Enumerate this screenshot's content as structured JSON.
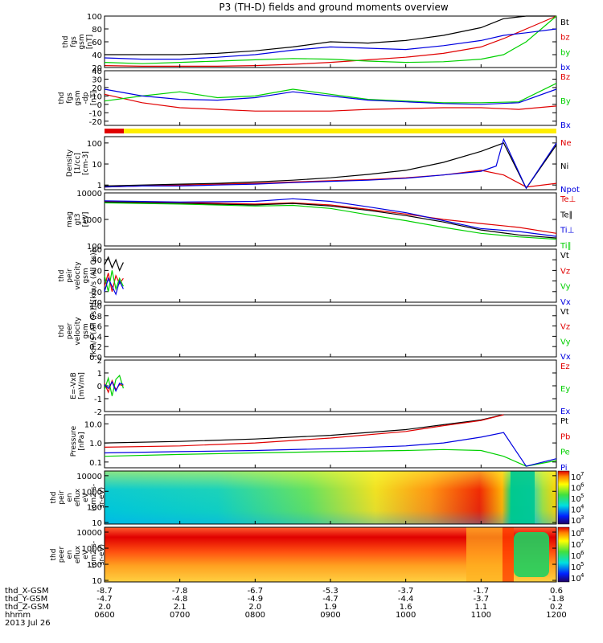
{
  "title": "P3 (TH-D) fields and ground moments overview",
  "date": "2013 Jul 26",
  "colors": {
    "black": "#000000",
    "red": "#e00000",
    "green": "#00d000",
    "blue": "#0000e0",
    "yellow": "#ffee00"
  },
  "chart_data": [
    {
      "id": "fgs_gsm",
      "type": "line",
      "ylabel": [
        "thd",
        "fgs",
        "gsm",
        "[nT]"
      ],
      "yticks": [
        "20",
        "40",
        "60",
        "80",
        "100"
      ],
      "ylim": [
        20,
        100
      ],
      "legend": [
        {
          "label": "Bt",
          "color": "black"
        },
        {
          "label": "bz",
          "color": "red"
        },
        {
          "label": "by",
          "color": "green"
        },
        {
          "label": "bx",
          "color": "blue"
        }
      ],
      "series": [
        {
          "name": "Bt",
          "color": "black",
          "x": [
            6.0,
            6.5,
            7.0,
            7.5,
            8.0,
            8.5,
            9.0,
            9.5,
            10.0,
            10.5,
            11.0,
            11.3,
            11.6,
            12.0
          ],
          "y": [
            40,
            40,
            40,
            42,
            46,
            52,
            60,
            58,
            62,
            70,
            82,
            96,
            100,
            100
          ]
        },
        {
          "name": "bz",
          "color": "red",
          "x": [
            6.0,
            6.5,
            7.0,
            7.5,
            8.0,
            8.5,
            9.0,
            9.5,
            10.0,
            10.5,
            11.0,
            11.3,
            11.6,
            12.0
          ],
          "y": [
            23,
            22,
            22,
            22,
            23,
            25,
            28,
            32,
            36,
            42,
            52,
            65,
            80,
            100
          ]
        },
        {
          "name": "by",
          "color": "green",
          "x": [
            6.0,
            6.5,
            7.0,
            7.5,
            8.0,
            8.5,
            9.0,
            9.5,
            10.0,
            10.5,
            11.0,
            11.3,
            11.6,
            12.0
          ],
          "y": [
            28,
            26,
            28,
            30,
            32,
            34,
            33,
            30,
            28,
            29,
            33,
            40,
            60,
            100
          ]
        },
        {
          "name": "bx",
          "color": "blue",
          "x": [
            6.0,
            6.5,
            7.0,
            7.5,
            8.0,
            8.5,
            9.0,
            9.5,
            10.0,
            10.5,
            11.0,
            11.3,
            11.6,
            12.0
          ],
          "y": [
            35,
            33,
            33,
            36,
            40,
            47,
            52,
            50,
            48,
            54,
            62,
            70,
            74,
            80
          ]
        }
      ]
    },
    {
      "id": "fgs_gsm_dp",
      "type": "line",
      "ylabel": [
        "thd",
        "fgs",
        "gsm",
        "-dp",
        "[nT]"
      ],
      "yticks": [
        "-20",
        "-10",
        "0",
        "10",
        "20",
        "30",
        "40"
      ],
      "ylim": [
        -25,
        40
      ],
      "legend": [
        {
          "label": "Bz",
          "color": "red"
        },
        {
          "label": "By",
          "color": "green"
        },
        {
          "label": "Bx",
          "color": "blue"
        }
      ],
      "series": [
        {
          "name": "Bz",
          "color": "red",
          "x": [
            6.0,
            6.5,
            7.0,
            7.5,
            8.0,
            8.5,
            9.0,
            9.5,
            10.0,
            10.5,
            11.0,
            11.5,
            12.0
          ],
          "y": [
            12,
            2,
            -4,
            -6,
            -8,
            -8,
            -8,
            -6,
            -5,
            -4,
            -4,
            -6,
            -2
          ]
        },
        {
          "name": "By",
          "color": "green",
          "x": [
            6.0,
            6.5,
            7.0,
            7.5,
            8.0,
            8.5,
            9.0,
            9.5,
            10.0,
            10.5,
            11.0,
            11.5,
            12.0
          ],
          "y": [
            4,
            10,
            15,
            8,
            10,
            18,
            12,
            6,
            4,
            2,
            2,
            3,
            25
          ]
        },
        {
          "name": "Bx",
          "color": "blue",
          "x": [
            6.0,
            6.5,
            7.0,
            7.5,
            8.0,
            8.5,
            9.0,
            9.5,
            10.0,
            10.5,
            11.0,
            11.5,
            12.0
          ],
          "y": [
            18,
            10,
            6,
            5,
            8,
            15,
            10,
            5,
            3,
            1,
            0,
            2,
            18
          ]
        }
      ]
    },
    {
      "id": "density",
      "type": "line",
      "ylabel": [
        "Density",
        "[1/cc]",
        "[cm-3]"
      ],
      "log": true,
      "yticks": [
        "1",
        "10",
        "100"
      ],
      "ylim": [
        0.6,
        200
      ],
      "legend": [
        {
          "label": "Ne",
          "color": "red"
        },
        {
          "label": "Ni",
          "color": "black"
        },
        {
          "label": "Npot",
          "color": "blue"
        }
      ],
      "series": [
        {
          "name": "Ne",
          "color": "red",
          "x": [
            6.0,
            6.5,
            7.0,
            7.5,
            8.0,
            8.5,
            9.0,
            9.5,
            10.0,
            10.5,
            11.0,
            11.3,
            11.6,
            12.0
          ],
          "y": [
            0.8,
            0.9,
            1.0,
            1.1,
            1.2,
            1.4,
            1.6,
            1.8,
            2.2,
            3.0,
            5.0,
            3.0,
            0.8,
            1.2
          ]
        },
        {
          "name": "Ni",
          "color": "black",
          "x": [
            6.0,
            6.5,
            7.0,
            7.5,
            8.0,
            8.5,
            9.0,
            9.5,
            10.0,
            10.5,
            11.0,
            11.3,
            11.6,
            12.0
          ],
          "y": [
            0.9,
            1.0,
            1.1,
            1.2,
            1.4,
            1.7,
            2.2,
            3.2,
            5.0,
            12,
            40,
            100,
            0.7,
            80
          ]
        },
        {
          "name": "Npot",
          "color": "blue",
          "x": [
            6.0,
            6.5,
            7.0,
            7.5,
            8.0,
            8.5,
            9.0,
            9.5,
            10.0,
            10.5,
            11.0,
            11.2,
            11.3,
            11.6,
            12.0
          ],
          "y": [
            0.8,
            0.9,
            0.9,
            1.0,
            1.1,
            1.3,
            1.5,
            1.7,
            2.1,
            3.0,
            4.5,
            8,
            150,
            0.7,
            100
          ]
        }
      ]
    },
    {
      "id": "temperature",
      "type": "line",
      "ylabel": [
        "mag",
        "gt3",
        "[eV]"
      ],
      "log": true,
      "yticks": [
        "100",
        "1000",
        "10000"
      ],
      "ylim": [
        100,
        10000
      ],
      "legend": [
        {
          "label": "Te⊥",
          "color": "red"
        },
        {
          "label": "Te∥",
          "color": "black"
        },
        {
          "label": "Ti⊥",
          "color": "blue"
        },
        {
          "label": "Ti∥",
          "color": "green"
        }
      ],
      "series": [
        {
          "name": "Te⊥",
          "color": "red",
          "x": [
            6.0,
            7.0,
            8.0,
            8.5,
            9.0,
            9.5,
            10.0,
            10.5,
            11.0,
            11.5,
            12.0
          ],
          "y": [
            4800,
            4400,
            3800,
            4200,
            3500,
            2400,
            1600,
            1000,
            700,
            500,
            300
          ]
        },
        {
          "name": "Te∥",
          "color": "black",
          "x": [
            6.0,
            7.0,
            8.0,
            8.5,
            9.0,
            9.5,
            10.0,
            10.5,
            11.0,
            11.5,
            12.0
          ],
          "y": [
            4500,
            4000,
            3500,
            4000,
            3200,
            2200,
            1400,
            800,
            400,
            260,
            200
          ]
        },
        {
          "name": "Ti⊥",
          "color": "blue",
          "x": [
            6.0,
            7.0,
            8.0,
            8.5,
            9.0,
            9.5,
            10.0,
            10.5,
            11.0,
            11.5,
            12.0
          ],
          "y": [
            5000,
            4500,
            4800,
            6000,
            4800,
            3000,
            1800,
            900,
            450,
            350,
            230
          ]
        },
        {
          "name": "Ti∥",
          "color": "green",
          "x": [
            6.0,
            7.0,
            8.0,
            8.5,
            9.0,
            9.5,
            10.0,
            10.5,
            11.0,
            11.5,
            12.0
          ],
          "y": [
            4200,
            3800,
            3200,
            3400,
            2600,
            1500,
            900,
            500,
            300,
            220,
            180
          ]
        }
      ]
    },
    {
      "id": "peir_velocity",
      "type": "line",
      "ylabel": [
        "thd",
        "peir",
        "velocity",
        "gsm",
        "[km/s (All Qs)]"
      ],
      "yticks": [
        "-40",
        "-20",
        "0",
        "20",
        "40",
        "60"
      ],
      "ylim": [
        -40,
        60
      ],
      "legend": [
        {
          "label": "Vt",
          "color": "black"
        },
        {
          "label": "Vz",
          "color": "red"
        },
        {
          "label": "Vy",
          "color": "green"
        },
        {
          "label": "Vx",
          "color": "blue"
        }
      ],
      "series": [
        {
          "name": "Vt",
          "color": "black",
          "x": [
            6.0,
            6.05,
            6.1,
            6.15,
            6.2,
            6.25
          ],
          "y": [
            30,
            45,
            25,
            40,
            20,
            35
          ]
        },
        {
          "name": "Vz",
          "color": "red",
          "x": [
            6.0,
            6.05,
            6.1,
            6.15,
            6.2,
            6.25
          ],
          "y": [
            -10,
            15,
            -20,
            10,
            -5,
            5
          ]
        },
        {
          "name": "Vy",
          "color": "green",
          "x": [
            6.0,
            6.05,
            6.1,
            6.15,
            6.2,
            6.25
          ],
          "y": [
            10,
            -20,
            20,
            -15,
            5,
            -10
          ]
        },
        {
          "name": "Vx",
          "color": "blue",
          "x": [
            6.0,
            6.05,
            6.1,
            6.15,
            6.2,
            6.25
          ],
          "y": [
            -20,
            5,
            -10,
            -25,
            0,
            -15
          ]
        }
      ]
    },
    {
      "id": "peer_velocity",
      "type": "line",
      "ylabel": [
        "thd",
        "peer",
        "velocity",
        "gsm",
        "[km/s (All Qs)]"
      ],
      "yticks": [
        "0.0",
        "0.2",
        "0.4",
        "0.6",
        "0.8",
        "1.0"
      ],
      "ylim": [
        0,
        1
      ],
      "legend": [
        {
          "label": "Vt",
          "color": "black"
        },
        {
          "label": "Vz",
          "color": "red"
        },
        {
          "label": "Vy",
          "color": "green"
        },
        {
          "label": "Vx",
          "color": "blue"
        }
      ],
      "series": []
    },
    {
      "id": "efield",
      "type": "line",
      "ylabel": [
        "E=-VxB",
        "[mV/m]"
      ],
      "yticks": [
        "-2",
        "-1",
        "0",
        "1",
        "2"
      ],
      "ylim": [
        -2,
        2
      ],
      "legend": [
        {
          "label": "Ez",
          "color": "red"
        },
        {
          "label": "Ey",
          "color": "green"
        },
        {
          "label": "Ex",
          "color": "blue"
        }
      ],
      "series": [
        {
          "name": "Ez",
          "color": "red",
          "x": [
            6.0,
            6.05,
            6.1,
            6.15,
            6.2,
            6.25
          ],
          "y": [
            0.2,
            -0.5,
            0.4,
            -0.3,
            0.1,
            0.0
          ]
        },
        {
          "name": "Ey",
          "color": "green",
          "x": [
            6.0,
            6.05,
            6.1,
            6.15,
            6.2,
            6.25
          ],
          "y": [
            -0.3,
            0.6,
            -0.8,
            0.5,
            0.8,
            -0.2
          ]
        },
        {
          "name": "Ex",
          "color": "blue",
          "x": [
            6.0,
            6.05,
            6.1,
            6.15,
            6.2,
            6.25
          ],
          "y": [
            0.1,
            -0.2,
            0.3,
            -0.4,
            0.2,
            0.1
          ]
        }
      ]
    },
    {
      "id": "pressure",
      "type": "line",
      "ylabel": [
        "Pressure",
        "[nPa]"
      ],
      "log": true,
      "yticks": [
        "0.1",
        "1.0",
        "10.0"
      ],
      "ylim": [
        0.05,
        30
      ],
      "legend": [
        {
          "label": "Pt",
          "color": "black"
        },
        {
          "label": "Pb",
          "color": "red"
        },
        {
          "label": "Pe",
          "color": "green"
        },
        {
          "label": "Pi",
          "color": "blue"
        }
      ],
      "series": [
        {
          "name": "Pt",
          "color": "black",
          "x": [
            6.0,
            7.0,
            8.0,
            9.0,
            10.0,
            10.5,
            11.0,
            11.3
          ],
          "y": [
            1.0,
            1.2,
            1.6,
            2.5,
            5.0,
            9,
            16,
            30
          ]
        },
        {
          "name": "Pb",
          "color": "red",
          "x": [
            6.0,
            7.0,
            8.0,
            9.0,
            10.0,
            10.5,
            11.0,
            11.3
          ],
          "y": [
            0.6,
            0.7,
            1.0,
            1.8,
            4.0,
            8,
            15,
            30
          ]
        },
        {
          "name": "Pe",
          "color": "green",
          "x": [
            6.0,
            7.0,
            8.0,
            9.0,
            10.0,
            10.5,
            11.0,
            11.3,
            11.6,
            12.0
          ],
          "y": [
            0.2,
            0.25,
            0.3,
            0.35,
            0.4,
            0.45,
            0.4,
            0.2,
            0.06,
            0.12
          ]
        },
        {
          "name": "Pi",
          "color": "blue",
          "x": [
            6.0,
            7.0,
            8.0,
            9.0,
            10.0,
            10.5,
            11.0,
            11.3,
            11.6,
            12.0
          ],
          "y": [
            0.3,
            0.35,
            0.4,
            0.5,
            0.7,
            1.0,
            2.0,
            3.5,
            0.06,
            0.15
          ]
        }
      ]
    },
    {
      "id": "peir_en_eflux",
      "type": "heatmap",
      "ylabel": [
        "thd",
        "peir",
        "en",
        "eflux",
        "eV",
        "(cm2-s-",
        "sr-eV)"
      ],
      "yticks": [
        "10",
        "100",
        "1000",
        "10000"
      ],
      "ylim": [
        8,
        20000
      ],
      "colorbar_ticks": [
        "10",
        "10",
        "10",
        "10",
        "10"
      ],
      "colorbar_exp": [
        "7",
        "6",
        "5",
        "4",
        "3"
      ]
    },
    {
      "id": "peer_en_eflux",
      "type": "heatmap",
      "ylabel": [
        "thd",
        "peer",
        "en",
        "eflux",
        "eV",
        "(cm2-s-",
        "sr-eV)"
      ],
      "yticks": [
        "10",
        "100",
        "1000",
        "10000"
      ],
      "ylim": [
        8,
        20000
      ],
      "colorbar_ticks": [
        "10",
        "10",
        "10",
        "10",
        "10"
      ],
      "colorbar_exp": [
        "8",
        "7",
        "6",
        "5",
        "4"
      ]
    }
  ],
  "xaxis": {
    "rows": [
      {
        "label": "thd_X-GSM",
        "values": [
          "-8.7",
          "-7.8",
          "-6.7",
          "-5.3",
          "-3.7",
          "-1.7",
          "0.6"
        ]
      },
      {
        "label": "thd_Y-GSM",
        "values": [
          "-4.7",
          "-4.8",
          "-4.9",
          "-4.7",
          "-4.4",
          "-3.7",
          "-1.8"
        ]
      },
      {
        "label": "thd_Z-GSM",
        "values": [
          "2.0",
          "2.1",
          "2.0",
          "1.9",
          "1.6",
          "1.1",
          "0.2"
        ]
      },
      {
        "label": "hhmm",
        "values": [
          "0600",
          "0700",
          "0800",
          "0900",
          "1000",
          "1100",
          "1200"
        ]
      }
    ],
    "xlim": [
      6.0,
      12.0
    ]
  }
}
